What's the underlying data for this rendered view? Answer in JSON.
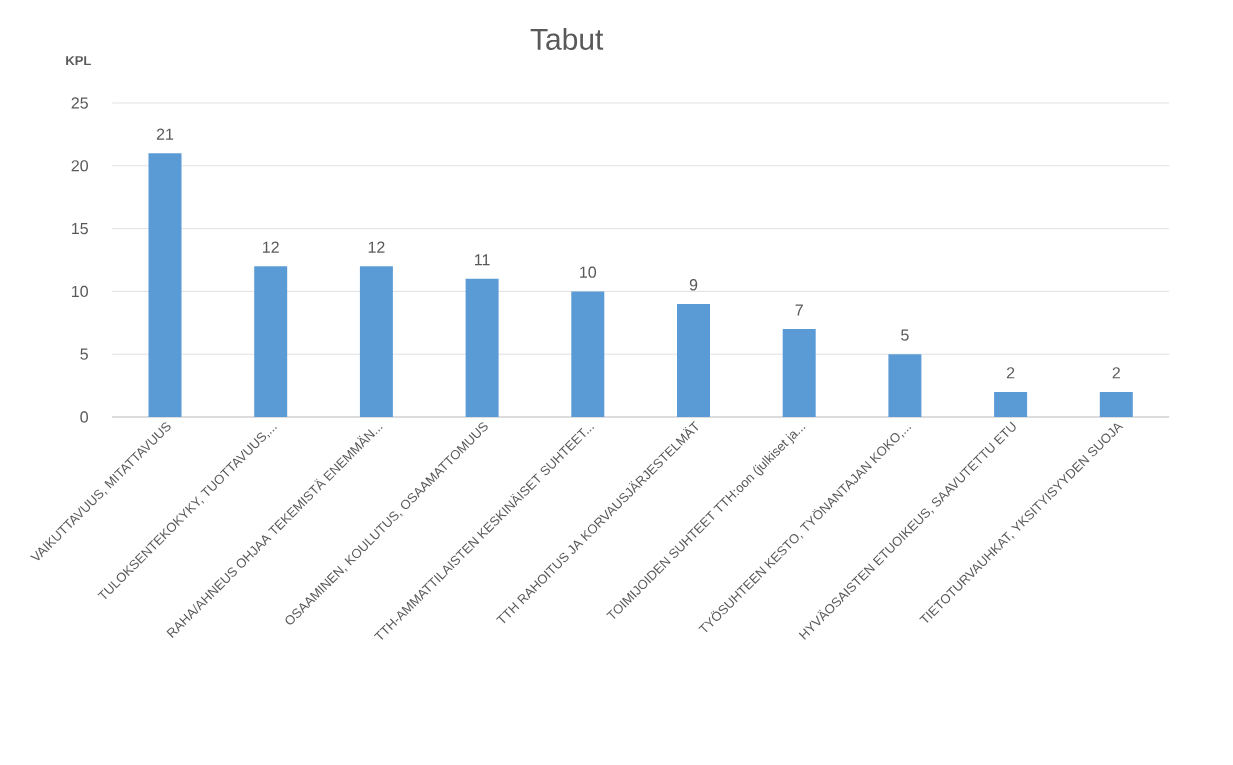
{
  "chart_data": {
    "type": "bar",
    "title": "Tabut",
    "ylabel": "KPL",
    "categories": [
      "VAIKUTTAVUUS, MITATTAVUUS",
      "TULOKSENTEKOKYKY, TUOTTAVUUS,...",
      "RAHA/AHNEUS OHJAA TEKEMISTÄ ENEMMÄN...",
      "OSAAMINEN, KOULUTUS, OSAAMATTOMUUS",
      "TTH-AMMATTILAISTEN KESKINÄISET SUHTEET...",
      "TTH RAHOITUS JA KORVAUSJÄRJESTELMÄT",
      "TOIMIJOIDEN SUHTEET TTH:oon (julkiset ja...",
      "TYÖSUHTEEN KESTO, TYÖNANTAJAN KOKO,...",
      "HYVÄOSAISTEN ETUOIKEUS, SAAVUTETTU ETU",
      "TIETOTURVAUHKAT, YKSITYISYYDEN SUOJA"
    ],
    "values": [
      21,
      12,
      12,
      11,
      10,
      9,
      7,
      5,
      2,
      2
    ],
    "color": "#5b9bd5",
    "ylim": [
      0,
      25
    ],
    "yticks": [
      0,
      5,
      10,
      15,
      20,
      25
    ],
    "grid": "y",
    "data_labels": true
  }
}
